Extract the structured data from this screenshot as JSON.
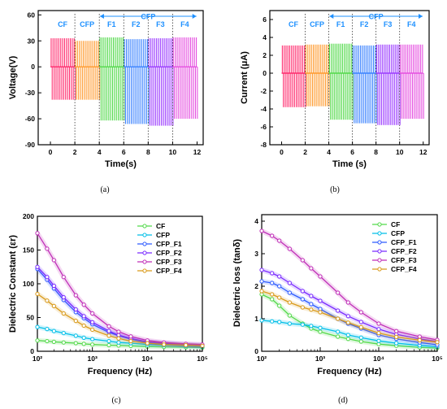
{
  "figure_captions": [
    "(a)",
    "(b)",
    "(c)",
    "(d)"
  ],
  "colors": {
    "CF": "#ff2a6d",
    "CFP": "#ff9a2e",
    "F1": "#52d94a",
    "F2": "#3a82ff",
    "F3": "#9b3bff",
    "F4": "#e54fe0",
    "segment_text": "#1e90ff"
  },
  "chart_data": [
    {
      "type": "line",
      "xlabel": "Time(s)",
      "ylabel": "Voltage(V)",
      "xlim": [
        -1,
        12.5
      ],
      "ylim": [
        -90,
        65
      ],
      "xticks": [
        "0",
        "2",
        "4",
        "6",
        "8",
        "10",
        "12"
      ],
      "yticks": [
        "60",
        "30",
        "0",
        "-30",
        "-60",
        "-90"
      ],
      "segment_labels": [
        "CF",
        "CFP",
        "F1",
        "F2",
        "F3",
        "F4"
      ],
      "group_label": "CFP",
      "segments": [
        {
          "name": "CF",
          "x_range": [
            0,
            2
          ],
          "peak": 33,
          "trough": -38
        },
        {
          "name": "CFP",
          "x_range": [
            2,
            4
          ],
          "peak": 30,
          "trough": -38
        },
        {
          "name": "F1",
          "x_range": [
            4,
            6
          ],
          "peak": 34,
          "trough": -62
        },
        {
          "name": "F2",
          "x_range": [
            6,
            8
          ],
          "peak": 32,
          "trough": -66
        },
        {
          "name": "F3",
          "x_range": [
            8,
            10
          ],
          "peak": 33,
          "trough": -68
        },
        {
          "name": "F4",
          "x_range": [
            10,
            12
          ],
          "peak": 34,
          "trough": -60
        }
      ]
    },
    {
      "type": "line",
      "xlabel": "Time (s)",
      "ylabel": "Current (μA)",
      "xlim": [
        -1,
        12.5
      ],
      "ylim": [
        -8,
        7
      ],
      "xticks": [
        "0",
        "2",
        "4",
        "6",
        "8",
        "10",
        "12"
      ],
      "yticks": [
        "6",
        "4",
        "2",
        "0",
        "-2",
        "-4",
        "-6",
        "-8"
      ],
      "segment_labels": [
        "CF",
        "CFP",
        "F1",
        "F2",
        "F3",
        "F4"
      ],
      "group_label": "CFP",
      "segments": [
        {
          "name": "CF",
          "x_range": [
            0,
            2
          ],
          "peak": 3.1,
          "trough": -3.8
        },
        {
          "name": "CFP",
          "x_range": [
            2,
            4
          ],
          "peak": 3.2,
          "trough": -3.7
        },
        {
          "name": "F1",
          "x_range": [
            4,
            6
          ],
          "peak": 3.3,
          "trough": -5.2
        },
        {
          "name": "F2",
          "x_range": [
            6,
            8
          ],
          "peak": 3.1,
          "trough": -5.6
        },
        {
          "name": "F3",
          "x_range": [
            8,
            10
          ],
          "peak": 3.2,
          "trough": -5.8
        },
        {
          "name": "F4",
          "x_range": [
            10,
            12
          ],
          "peak": 3.2,
          "trough": -5.1
        }
      ]
    },
    {
      "type": "line",
      "xlabel": "Frequency (Hz)",
      "ylabel": "Dielectric Constant (εr)",
      "x_scale": "log",
      "xlim": [
        100,
        100000
      ],
      "ylim": [
        0,
        200
      ],
      "xticks": [
        "10²",
        "10³",
        "10⁴",
        "10⁵"
      ],
      "yticks": [
        "200",
        "150",
        "100",
        "50",
        "0"
      ],
      "legend_position": "top-right",
      "x": [
        100,
        150,
        200,
        300,
        500,
        700,
        1000,
        2000,
        3000,
        5000,
        10000,
        20000,
        50000,
        100000
      ],
      "series": [
        {
          "name": "CF",
          "values": [
            16,
            15,
            14,
            13,
            12,
            11,
            10,
            9,
            8.5,
            8,
            7,
            6.5,
            6,
            5.5
          ]
        },
        {
          "name": "CFP",
          "values": [
            36,
            33,
            30,
            27,
            23,
            20,
            18,
            15,
            13,
            12,
            10,
            9,
            8,
            7
          ]
        },
        {
          "name": "CFP_F1",
          "values": [
            122,
            106,
            93,
            76,
            58,
            49,
            40,
            28,
            23,
            18,
            13,
            11,
            9,
            8
          ]
        },
        {
          "name": "CFP_F2",
          "values": [
            125,
            110,
            97,
            80,
            62,
            52,
            43,
            30,
            24,
            19,
            14,
            12,
            10,
            9
          ]
        },
        {
          "name": "CFP_F3",
          "values": [
            175,
            152,
            135,
            110,
            83,
            69,
            56,
            37,
            29,
            22,
            16,
            13,
            11,
            10
          ]
        },
        {
          "name": "CFP_F4",
          "values": [
            85,
            75,
            67,
            56,
            45,
            38,
            32,
            23,
            19,
            15,
            12,
            10,
            9,
            8
          ]
        }
      ]
    },
    {
      "type": "line",
      "xlabel": "Frequency (Hz)",
      "ylabel": "Dielectric loss (tanδ)",
      "x_scale": "log",
      "xlim": [
        100,
        100000
      ],
      "ylim": [
        0,
        4.2
      ],
      "xticks": [
        "10²",
        "10³",
        "10⁴",
        "10⁵"
      ],
      "yticks": [
        "4",
        "3",
        "2",
        "1",
        "0"
      ],
      "legend_position": "top-right",
      "x": [
        100,
        150,
        200,
        300,
        500,
        700,
        1000,
        2000,
        3000,
        5000,
        10000,
        20000,
        50000,
        100000
      ],
      "series": [
        {
          "name": "CF",
          "values": [
            1.75,
            1.6,
            1.4,
            1.1,
            0.85,
            0.7,
            0.6,
            0.45,
            0.38,
            0.3,
            0.22,
            0.17,
            0.12,
            0.1
          ]
        },
        {
          "name": "CFP",
          "values": [
            0.95,
            0.92,
            0.9,
            0.85,
            0.82,
            0.78,
            0.72,
            0.6,
            0.5,
            0.42,
            0.32,
            0.25,
            0.18,
            0.14
          ]
        },
        {
          "name": "CFP_F1",
          "values": [
            2.15,
            2.1,
            2.0,
            1.8,
            1.6,
            1.45,
            1.3,
            1.0,
            0.85,
            0.7,
            0.5,
            0.38,
            0.27,
            0.2
          ]
        },
        {
          "name": "CFP_F2",
          "values": [
            2.5,
            2.4,
            2.3,
            2.1,
            1.85,
            1.7,
            1.55,
            1.25,
            1.08,
            0.9,
            0.68,
            0.52,
            0.38,
            0.3
          ]
        },
        {
          "name": "CFP_F3",
          "values": [
            3.7,
            3.55,
            3.4,
            3.15,
            2.8,
            2.55,
            2.3,
            1.8,
            1.5,
            1.2,
            0.85,
            0.62,
            0.45,
            0.35
          ]
        },
        {
          "name": "CFP_F4",
          "values": [
            1.85,
            1.75,
            1.65,
            1.5,
            1.35,
            1.28,
            1.2,
            1.0,
            0.88,
            0.74,
            0.56,
            0.44,
            0.34,
            0.28
          ]
        }
      ]
    }
  ]
}
